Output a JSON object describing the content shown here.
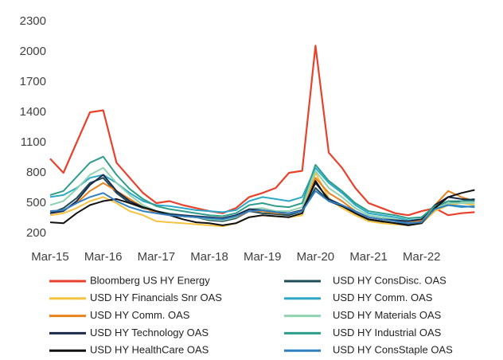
{
  "chart_data": {
    "type": "line",
    "categories": [
      "Mar-15",
      null,
      null,
      null,
      "Mar-16",
      null,
      null,
      null,
      "Mar-17",
      null,
      null,
      null,
      "Mar-18",
      null,
      null,
      null,
      "Mar-19",
      null,
      null,
      null,
      "Mar-20",
      null,
      null,
      null,
      "Mar-21",
      null,
      null,
      null,
      "Mar-22",
      null,
      null,
      null,
      null
    ],
    "ylim": [
      200,
      2300
    ],
    "yticks": [
      200,
      500,
      800,
      1100,
      1400,
      1700,
      2000,
      2300
    ],
    "grid": false,
    "legend": "bottom",
    "series": [
      {
        "name": "Bloomberg US HY Energy",
        "color": "#e8412c",
        "values": [
          940,
          800,
          1100,
          1400,
          1420,
          900,
          750,
          600,
          500,
          520,
          480,
          450,
          420,
          400,
          450,
          560,
          600,
          650,
          800,
          820,
          2060,
          1000,
          850,
          650,
          500,
          450,
          400,
          380,
          420,
          450,
          380,
          400,
          410
        ]
      },
      {
        "name": "USD HY ConsDisc. OAS",
        "color": "#1f4e5a",
        "values": [
          400,
          450,
          550,
          700,
          750,
          600,
          500,
          450,
          420,
          380,
          370,
          360,
          330,
          320,
          350,
          420,
          400,
          390,
          380,
          420,
          650,
          520,
          480,
          400,
          330,
          310,
          300,
          290,
          320,
          460,
          500,
          520,
          540
        ]
      },
      {
        "name": "USD HY Financials Snr OAS",
        "color": "#f5c242",
        "values": [
          380,
          400,
          450,
          520,
          560,
          500,
          420,
          380,
          320,
          310,
          300,
          290,
          280,
          270,
          300,
          360,
          380,
          370,
          360,
          380,
          800,
          550,
          450,
          380,
          320,
          300,
          290,
          280,
          300,
          420,
          480,
          500,
          480
        ]
      },
      {
        "name": "USD HY Comm. OAS",
        "color": "#2ea8c8",
        "values": [
          560,
          580,
          650,
          750,
          780,
          700,
          600,
          520,
          480,
          470,
          450,
          430,
          420,
          410,
          430,
          520,
          560,
          540,
          520,
          560,
          850,
          700,
          600,
          480,
          400,
          380,
          360,
          330,
          340,
          450,
          480,
          460,
          470
        ]
      },
      {
        "name": "USD HY Comm. OAS",
        "color": "#e8821e",
        "values": [
          420,
          430,
          500,
          620,
          700,
          620,
          540,
          460,
          400,
          380,
          370,
          360,
          350,
          340,
          360,
          420,
          420,
          400,
          400,
          420,
          750,
          600,
          520,
          420,
          360,
          340,
          320,
          300,
          330,
          480,
          620,
          560,
          520
        ]
      },
      {
        "name": "USD HY Materials OAS",
        "color": "#8fd3b0",
        "values": [
          480,
          520,
          640,
          780,
          850,
          700,
          580,
          480,
          420,
          400,
          380,
          360,
          340,
          330,
          360,
          440,
          450,
          420,
          420,
          460,
          820,
          650,
          560,
          450,
          380,
          360,
          340,
          320,
          340,
          450,
          500,
          500,
          500
        ]
      },
      {
        "name": "USD HY Technology OAS",
        "color": "#1c2a4a",
        "values": [
          400,
          420,
          520,
          680,
          780,
          620,
          520,
          460,
          420,
          390,
          380,
          370,
          360,
          350,
          380,
          440,
          430,
          410,
          400,
          430,
          700,
          540,
          480,
          420,
          360,
          340,
          330,
          320,
          340,
          480,
          560,
          540,
          530
        ]
      },
      {
        "name": "USD HY Industrial OAS",
        "color": "#2e9e8a",
        "values": [
          580,
          620,
          760,
          900,
          960,
          780,
          640,
          540,
          470,
          440,
          420,
          400,
          380,
          370,
          400,
          480,
          500,
          470,
          460,
          500,
          880,
          720,
          620,
          500,
          420,
          400,
          380,
          350,
          360,
          470,
          520,
          520,
          520
        ]
      },
      {
        "name": "USD HY HealthCare OAS",
        "color": "#111111",
        "values": [
          310,
          300,
          400,
          480,
          520,
          540,
          500,
          460,
          420,
          380,
          340,
          310,
          300,
          280,
          300,
          360,
          380,
          370,
          360,
          400,
          720,
          520,
          470,
          400,
          340,
          320,
          300,
          280,
          300,
          450,
          560,
          600,
          630
        ]
      },
      {
        "name": "USD HY ConsStaple OAS",
        "color": "#2f7fc1",
        "values": [
          420,
          430,
          500,
          560,
          600,
          520,
          460,
          420,
          400,
          380,
          370,
          360,
          350,
          340,
          370,
          420,
          430,
          410,
          400,
          420,
          620,
          520,
          480,
          420,
          360,
          340,
          320,
          300,
          310,
          440,
          480,
          470,
          460
        ]
      }
    ]
  }
}
